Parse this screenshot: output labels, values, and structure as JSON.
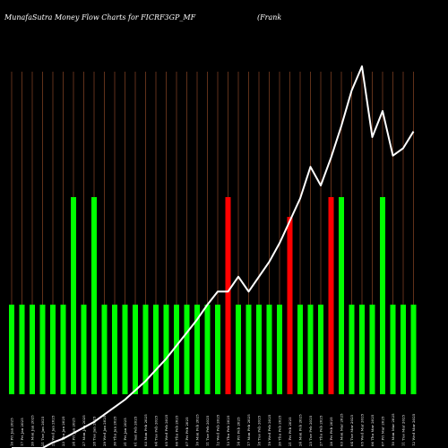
{
  "chart_data": {
    "type": "bar",
    "title": "MunafaSutra  Money Flow  Charts for FICRF3GP_MF",
    "subtitle": "(Frank",
    "colors": {
      "background": "#000000",
      "inflow": "#00ff00",
      "outflow": "#ff0000",
      "gridline": "#a0522d",
      "line": "#ffffff"
    },
    "categories": [
      "16 Fri Jan 2025",
      "17 Fri Jan 2025",
      "20 Mon Jan 2025",
      "21 Tue Jan 2025",
      "22 Wed Jan 2025",
      "23 Thu Jan 2025",
      "24 Fri Jan 2025",
      "27 Mon Jan 2025",
      "28 Tue Jan 2025",
      "29 Wed Jan 2025",
      "30 Thu Jan 2025",
      "31 Fri Jan 2025",
      "01 Sat Feb 2025",
      "03 Mon Feb 2025",
      "04 Tue Feb 2025",
      "05 Wed Feb 2025",
      "06 Thu Feb 2025",
      "07 Fri Feb 2025",
      "10 Mon Feb 2025",
      "11 Tue Feb 2025",
      "12 Wed Feb 2025",
      "13 Thu Feb 2025",
      "14 Fri Feb 2025",
      "17 Mon Feb 2025",
      "18 Tue Feb 2025",
      "19 Wed Feb 2025",
      "20 Thu Feb 2025",
      "21 Fri Feb 2025",
      "24 Mon Feb 2025",
      "25 Tue Feb 2025",
      "27 Thu Feb 2025",
      "28 Fri Feb 2025",
      "03 Mon Mar 2025",
      "04 Tue Mar 2025",
      "05 Wed Mar 2025",
      "06 Thu Mar 2025",
      "07 Fri Mar 2025",
      "10 Mon Mar 2025",
      "11 Tue Mar 2025",
      "12 Wed Mar 2025"
    ],
    "tick_labels": [
      "16 Fri Jan 2025",
      "17 Fri Jan 2025",
      "20 Mon Jan 2025",
      "21 Tue Jan 2025",
      "22 Wed Jan 2025",
      "23 Thu Jan 2025",
      "24 Fri Jan 2025",
      "27 Mon Jan 2025",
      "28 Tue Jan 2025",
      "29 Wed Jan 2025",
      "30 Thu Jan 2025",
      "31 Fri Jan 2025",
      "01 Sat Feb 2025",
      "03 Mon Feb 2025",
      "04 Tue Feb 2025",
      "05 Wed Feb 2025",
      "06 Thu Feb 2025",
      "07 Fri Feb 2025",
      "10 Mon Feb 2025",
      "11 Tue Feb 2025",
      "12 Wed Feb 2025",
      "13 Thu Feb 2025",
      "14 Fri Feb 2025",
      "17 Mon Feb 2025",
      "18 Tue Feb 2025",
      "19 Wed Feb 2025",
      "20 Thu Feb 2025",
      "21 Fri Feb 2025",
      "24 Mon Feb 2025",
      "25 Tue Feb 2025",
      "27 Thu Feb 2025",
      "28 Fri Feb 2025",
      "03 Mon Mar 2025",
      "04 Tue Mar 2025",
      "05 Wed Mar 2025",
      "06 Thu Mar 2025",
      "07 Fri Mar 2025",
      "10 Mon Mar 2025",
      "11 Tue Mar 2025",
      "12 Wed Mar 2025"
    ],
    "series": [
      {
        "kind": "bars",
        "values": [
          0.5,
          0.5,
          0.5,
          0.5,
          0.5,
          0.5,
          1.1,
          0.5,
          1.1,
          0.5,
          0.5,
          0.5,
          0.5,
          0.5,
          0.5,
          0.5,
          0.5,
          0.5,
          0.5,
          0.5,
          0.5,
          1.1,
          0.5,
          0.5,
          0.5,
          0.5,
          0.5,
          0.99,
          0.5,
          0.5,
          0.5,
          1.1,
          1.1,
          0.5,
          0.5,
          0.5,
          1.1,
          0.5,
          0.5,
          0.5
        ],
        "direction": [
          "in",
          "in",
          "in",
          "in",
          "in",
          "in",
          "in",
          "in",
          "in",
          "in",
          "in",
          "in",
          "in",
          "in",
          "in",
          "in",
          "in",
          "in",
          "in",
          "in",
          "in",
          "out",
          "in",
          "in",
          "in",
          "in",
          "in",
          "out",
          "in",
          "in",
          "in",
          "out",
          "in",
          "in",
          "in",
          "in",
          "in",
          "in",
          "in",
          "in"
        ]
      },
      {
        "kind": "line",
        "values": [
          0.0,
          0.0,
          0.0,
          0.0,
          0.03,
          0.05,
          0.08,
          0.11,
          0.14,
          0.18,
          0.22,
          0.26,
          0.31,
          0.36,
          0.42,
          0.48,
          0.55,
          0.62,
          0.69,
          0.77,
          0.84,
          0.84,
          0.92,
          0.84,
          0.92,
          1.0,
          1.1,
          1.22,
          1.34,
          1.51,
          1.41,
          1.56,
          1.73,
          1.92,
          2.05,
          1.67,
          1.81,
          1.57,
          1.61,
          1.7
        ]
      }
    ],
    "ylim": [
      0,
      2.2
    ],
    "grid": "vertical",
    "legend": "none"
  }
}
